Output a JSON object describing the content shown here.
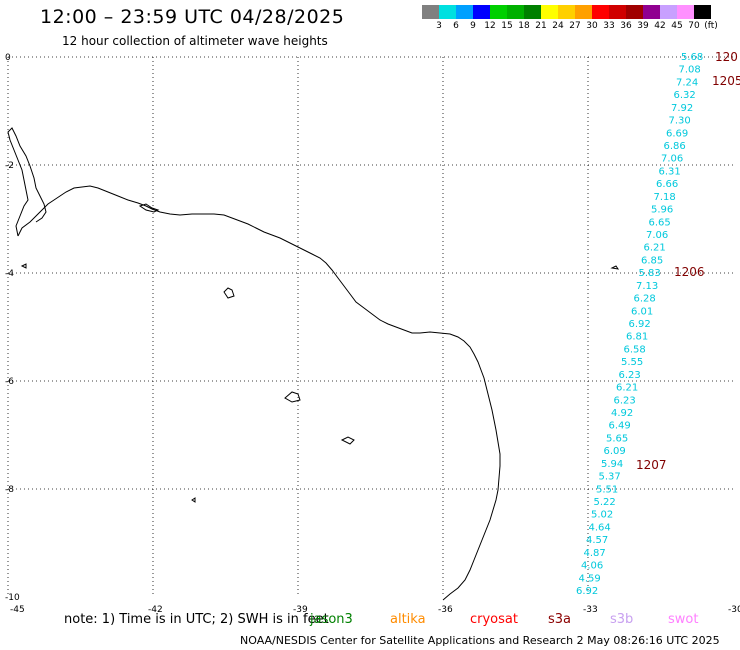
{
  "title": "12:00 – 23:59 UTC 04/28/2025",
  "subtitle": "12 hour collection of altimeter wave heights",
  "colorbar": {
    "colors": [
      "#808080",
      "#00e0e0",
      "#00a0ff",
      "#0000ff",
      "#00d000",
      "#00b000",
      "#008000",
      "#ffff00",
      "#ffd000",
      "#ffa000",
      "#ff0000",
      "#d00000",
      "#a00000",
      "#900090",
      "#c8a0ff",
      "#ff90ff",
      "#000000"
    ],
    "labels": [
      "3",
      "6",
      "9",
      "12",
      "15",
      "18",
      "21",
      "24",
      "27",
      "30",
      "33",
      "36",
      "39",
      "42",
      "45",
      "70",
      "(ft)"
    ]
  },
  "axes": {
    "x_ticks": [
      "-45",
      "-42",
      "-39",
      "-36",
      "-33",
      "-30"
    ],
    "y_ticks": [
      "0",
      "-2",
      "-4",
      "-6",
      "-8",
      "-10"
    ]
  },
  "track": {
    "color": "#00c8dc",
    "values": [
      "5.68",
      "7.08",
      "7.24",
      "6.32",
      "7.92",
      "7.30",
      "6.69",
      "6.86",
      "7.06",
      "6.31",
      "6.66",
      "7.18",
      "5.96",
      "6.65",
      "7.06",
      "6.21",
      "6.85",
      "5.83",
      "7.13",
      "6.28",
      "6.01",
      "6.92",
      "6.81",
      "6.58",
      "5.55",
      "6.23",
      "6.21",
      "6.23",
      "4.92",
      "6.49",
      "5.65",
      "6.09",
      "5.94",
      "5.37",
      "5.51",
      "5.22",
      "5.02",
      "4.64",
      "4.57",
      "4.87",
      "4.06",
      "4.59",
      "6.92"
    ]
  },
  "times": {
    "color": "#800000",
    "labels": [
      "120",
      "1205",
      "1206",
      "1207"
    ]
  },
  "note": "note: 1) Time is in UTC; 2) SWH is in feet",
  "legend": [
    {
      "label": "jason3",
      "color": "#008000"
    },
    {
      "label": "altika",
      "color": "#ff8c00"
    },
    {
      "label": "cryosat",
      "color": "#ff0000"
    },
    {
      "label": "s3a",
      "color": "#8b0000"
    },
    {
      "label": "s3b",
      "color": "#c8a0f0"
    },
    {
      "label": "swot",
      "color": "#ff80ff"
    }
  ],
  "footer": "NOAA/NESDIS Center for Satellite Applications and Research     2 May 08:26:16 UTC 2025"
}
